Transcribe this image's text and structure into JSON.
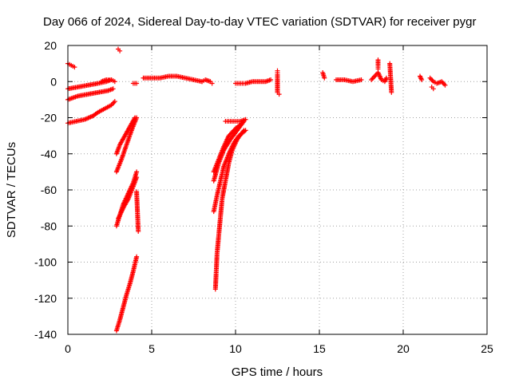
{
  "chart_data": {
    "type": "scatter",
    "title": "Day 066 of 2024, Sidereal Day-to-day VTEC variation (SDTVAR) for receiver pygr",
    "xlabel": "GPS time / hours",
    "ylabel": "SDTVAR / TECUs",
    "xlim": [
      0,
      25
    ],
    "ylim": [
      -140,
      20
    ],
    "xticks": [
      0,
      5,
      10,
      15,
      20,
      25
    ],
    "yticks": [
      -140,
      -120,
      -100,
      -80,
      -60,
      -40,
      -20,
      0,
      20
    ],
    "grid": true,
    "marker": "+",
    "color": "#ff0000",
    "tracks": [
      {
        "x": [
          0.0,
          0.6,
          1.2,
          1.8,
          2.3,
          2.6
        ],
        "y": [
          -4,
          -3,
          -2,
          -1,
          0,
          1
        ]
      },
      {
        "x": [
          0.0,
          0.6,
          1.2,
          1.8,
          2.4,
          2.7
        ],
        "y": [
          -10,
          -8,
          -7,
          -6,
          -5,
          -4
        ]
      },
      {
        "x": [
          0.0,
          0.5,
          1.0,
          1.5,
          1.8,
          2.2,
          2.6,
          2.8
        ],
        "y": [
          -23,
          -22,
          -21,
          -19,
          -17,
          -15,
          -13,
          -11
        ]
      },
      {
        "x": [
          0.0,
          0.2,
          0.4
        ],
        "y": [
          10,
          9,
          8
        ]
      },
      {
        "x": [
          2.0,
          2.3,
          2.6,
          2.8
        ],
        "y": [
          0,
          1,
          1,
          0
        ]
      },
      {
        "x": [
          3.0,
          3.1
        ],
        "y": [
          18,
          17
        ]
      },
      {
        "x": [
          2.9,
          3.2,
          3.5,
          3.8,
          4.1
        ],
        "y": [
          -50,
          -43,
          -35,
          -27,
          -20
        ]
      },
      {
        "x": [
          2.9,
          3.1,
          3.4,
          3.7,
          4.0
        ],
        "y": [
          -40,
          -35,
          -30,
          -25,
          -20
        ]
      },
      {
        "x": [
          2.9,
          3.1,
          3.3,
          3.6,
          3.9,
          4.1
        ],
        "y": [
          -80,
          -74,
          -68,
          -62,
          -56,
          -50
        ]
      },
      {
        "x": [
          3.0,
          3.3,
          3.6,
          3.9,
          4.1
        ],
        "y": [
          -76,
          -70,
          -65,
          -58,
          -53
        ]
      },
      {
        "x": [
          2.9,
          3.1,
          3.3,
          3.5,
          3.7,
          3.9,
          4.1
        ],
        "y": [
          -138,
          -132,
          -125,
          -118,
          -112,
          -105,
          -97
        ]
      },
      {
        "x": [
          4.1,
          4.2
        ],
        "y": [
          -61,
          -83
        ]
      },
      {
        "x": [
          3.9,
          4.1
        ],
        "y": [
          -1,
          -1
        ]
      },
      {
        "x": [
          4.5,
          5.0,
          5.5,
          6.0,
          6.5,
          7.0,
          7.5,
          8.0
        ],
        "y": [
          2,
          2,
          2,
          3,
          3,
          2,
          1,
          0
        ]
      },
      {
        "x": [
          8.0,
          8.2,
          8.5,
          8.6
        ],
        "y": [
          0,
          1,
          0,
          -1
        ]
      },
      {
        "x": [
          8.7,
          9.0,
          9.3,
          9.7,
          10.1,
          10.5
        ],
        "y": [
          -55,
          -45,
          -38,
          -32,
          -27,
          -22
        ]
      },
      {
        "x": [
          8.7,
          9.0,
          9.3,
          9.6,
          10.0,
          10.4
        ],
        "y": [
          -50,
          -43,
          -36,
          -30,
          -26,
          -23
        ]
      },
      {
        "x": [
          8.7,
          8.9,
          9.1,
          9.3,
          9.6,
          9.9,
          10.2,
          10.6
        ],
        "y": [
          -72,
          -63,
          -55,
          -47,
          -40,
          -34,
          -30,
          -27
        ]
      },
      {
        "x": [
          8.8,
          8.85,
          8.9,
          9.0,
          9.1,
          9.2,
          9.4,
          9.6,
          9.8,
          10.1,
          10.5
        ],
        "y": [
          -115,
          -105,
          -95,
          -85,
          -75,
          -65,
          -55,
          -45,
          -38,
          -32,
          -27
        ]
      },
      {
        "x": [
          9.4,
          9.7,
          10.0,
          10.3,
          10.6
        ],
        "y": [
          -22,
          -22,
          -22,
          -22,
          -21
        ]
      },
      {
        "x": [
          10.0,
          10.3,
          10.6,
          11.0,
          11.4,
          11.8,
          12.1
        ],
        "y": [
          -1,
          -1,
          -1,
          0,
          0,
          0,
          1
        ]
      },
      {
        "x": [
          12.5,
          12.5,
          12.5,
          12.6
        ],
        "y": [
          6,
          4,
          -6,
          -7
        ]
      },
      {
        "x": [
          15.2,
          15.3
        ],
        "y": [
          5,
          2
        ]
      },
      {
        "x": [
          16.0,
          16.5,
          17.0,
          17.5
        ],
        "y": [
          1,
          1,
          0,
          1
        ]
      },
      {
        "x": [
          18.1,
          18.3,
          18.5,
          18.7,
          18.9,
          19.0
        ],
        "y": [
          1,
          3,
          5,
          1,
          0,
          2
        ]
      },
      {
        "x": [
          18.5,
          18.5,
          18.5
        ],
        "y": [
          12,
          9,
          7
        ]
      },
      {
        "x": [
          19.2,
          19.3
        ],
        "y": [
          10,
          -6
        ]
      },
      {
        "x": [
          21.0,
          21.1
        ],
        "y": [
          3,
          1
        ]
      },
      {
        "x": [
          21.6,
          21.8,
          22.0,
          22.3,
          22.5
        ],
        "y": [
          2,
          0,
          -1,
          0,
          -2
        ]
      },
      {
        "x": [
          21.7,
          21.8
        ],
        "y": [
          -3,
          -4
        ]
      }
    ]
  }
}
